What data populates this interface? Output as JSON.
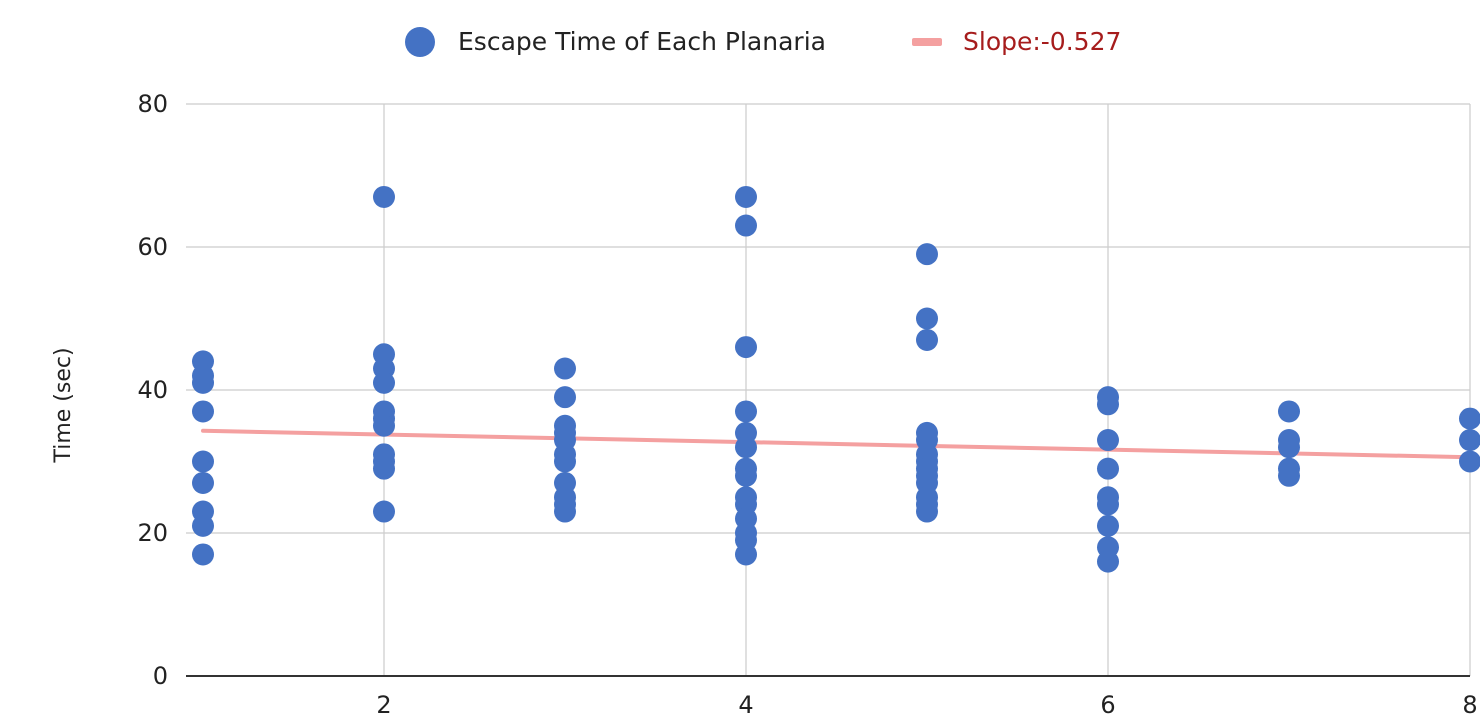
{
  "chart_data": {
    "type": "scatter",
    "title": "",
    "xlabel": "",
    "ylabel": "Time (sec)",
    "xlim": [
      1,
      8
    ],
    "ylim": [
      0,
      80
    ],
    "x_ticks": [
      2,
      4,
      6,
      8
    ],
    "y_ticks": [
      0,
      20,
      40,
      60,
      80
    ],
    "grid": true,
    "legend_position": "top",
    "series": [
      {
        "name": "Escape Time of Each Planaria",
        "type": "scatter",
        "color": "#4472c4",
        "points": [
          [
            1,
            44
          ],
          [
            1,
            42
          ],
          [
            1,
            41
          ],
          [
            1,
            37
          ],
          [
            1,
            30
          ],
          [
            1,
            27
          ],
          [
            1,
            23
          ],
          [
            1,
            21
          ],
          [
            1,
            17
          ],
          [
            2,
            67
          ],
          [
            2,
            45
          ],
          [
            2,
            43
          ],
          [
            2,
            41
          ],
          [
            2,
            37
          ],
          [
            2,
            36
          ],
          [
            2,
            35
          ],
          [
            2,
            31
          ],
          [
            2,
            30
          ],
          [
            2,
            29
          ],
          [
            2,
            23
          ],
          [
            3,
            43
          ],
          [
            3,
            39
          ],
          [
            3,
            35
          ],
          [
            3,
            34
          ],
          [
            3,
            33
          ],
          [
            3,
            31
          ],
          [
            3,
            30
          ],
          [
            3,
            27
          ],
          [
            3,
            25
          ],
          [
            3,
            24
          ],
          [
            3,
            23
          ],
          [
            4,
            67
          ],
          [
            4,
            63
          ],
          [
            4,
            46
          ],
          [
            4,
            37
          ],
          [
            4,
            34
          ],
          [
            4,
            32
          ],
          [
            4,
            29
          ],
          [
            4,
            28
          ],
          [
            4,
            25
          ],
          [
            4,
            24
          ],
          [
            4,
            22
          ],
          [
            4,
            20
          ],
          [
            4,
            19
          ],
          [
            4,
            17
          ],
          [
            5,
            59
          ],
          [
            5,
            50
          ],
          [
            5,
            47
          ],
          [
            5,
            34
          ],
          [
            5,
            33
          ],
          [
            5,
            31
          ],
          [
            5,
            30
          ],
          [
            5,
            29
          ],
          [
            5,
            28
          ],
          [
            5,
            27
          ],
          [
            5,
            25
          ],
          [
            5,
            24
          ],
          [
            5,
            23
          ],
          [
            6,
            39
          ],
          [
            6,
            38
          ],
          [
            6,
            33
          ],
          [
            6,
            29
          ],
          [
            6,
            25
          ],
          [
            6,
            24
          ],
          [
            6,
            21
          ],
          [
            6,
            18
          ],
          [
            6,
            16
          ],
          [
            7,
            37
          ],
          [
            7,
            33
          ],
          [
            7,
            32
          ],
          [
            7,
            29
          ],
          [
            7,
            28
          ],
          [
            8,
            36
          ],
          [
            8,
            33
          ],
          [
            8,
            30
          ]
        ]
      },
      {
        "name": "Slope:-0.527",
        "type": "line",
        "color": "#f4a0a0",
        "label_color": "#a61c1c",
        "points": [
          [
            1,
            34.3
          ],
          [
            8,
            30.6
          ]
        ]
      }
    ]
  }
}
